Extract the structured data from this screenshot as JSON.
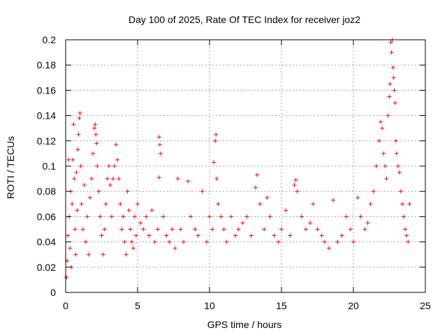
{
  "chart_data": {
    "type": "scatter",
    "title": "Day 100 of 2025, Rate Of TEC Index for receiver joz2",
    "xlabel": "GPS time / hours",
    "ylabel": "ROTI / TECUs",
    "xlim": [
      0,
      25
    ],
    "ylim": [
      0,
      0.2
    ],
    "xticks": [
      0,
      5,
      10,
      15,
      20,
      25
    ],
    "yticks": [
      0,
      0.02,
      0.04,
      0.06,
      0.08,
      0.1,
      0.12,
      0.14,
      0.16,
      0.18,
      0.2
    ],
    "xtick_labels": [
      "0",
      "5",
      "10",
      "15",
      "20",
      "25"
    ],
    "ytick_labels": [
      "0",
      "0.02",
      "0.04",
      "0.06",
      "0.08",
      "0.1",
      "0.12",
      "0.14",
      "0.16",
      "0.18",
      "0.2"
    ],
    "grid": true,
    "marker": "+",
    "color": "#ff0000",
    "series": [
      {
        "points": [
          [
            0.05,
            0.012
          ],
          [
            0.1,
            0.025
          ],
          [
            0.15,
            0.045
          ],
          [
            0.2,
            0.105
          ],
          [
            0.25,
            0.06
          ],
          [
            0.3,
            0.035
          ],
          [
            0.35,
            0.08
          ],
          [
            0.4,
            0.02
          ],
          [
            0.45,
            0.07
          ],
          [
            0.5,
            0.105
          ],
          [
            0.55,
            0.133
          ],
          [
            0.6,
            0.09
          ],
          [
            0.65,
            0.05
          ],
          [
            0.7,
            0.03
          ],
          [
            0.75,
            0.095
          ],
          [
            0.8,
            0.065
          ],
          [
            0.85,
            0.113
          ],
          [
            0.9,
            0.125
          ],
          [
            0.95,
            0.138
          ],
          [
            1.0,
            0.142
          ],
          [
            1.05,
            0.1
          ],
          [
            1.1,
            0.07
          ],
          [
            1.2,
            0.05
          ],
          [
            1.3,
            0.085
          ],
          [
            1.4,
            0.04
          ],
          [
            1.5,
            0.06
          ],
          [
            1.6,
            0.03
          ],
          [
            1.7,
            0.075
          ],
          [
            1.8,
            0.09
          ],
          [
            1.9,
            0.11
          ],
          [
            2.0,
            0.13
          ],
          [
            2.05,
            0.133
          ],
          [
            2.1,
            0.125
          ],
          [
            2.15,
            0.118
          ],
          [
            2.2,
            0.1
          ],
          [
            2.3,
            0.08
          ],
          [
            2.4,
            0.06
          ],
          [
            2.5,
            0.045
          ],
          [
            2.6,
            0.03
          ],
          [
            2.7,
            0.05
          ],
          [
            2.8,
            0.07
          ],
          [
            2.9,
            0.09
          ],
          [
            3.0,
            0.1
          ],
          [
            3.1,
            0.085
          ],
          [
            3.2,
            0.06
          ],
          [
            3.3,
            0.09
          ],
          [
            3.4,
            0.1
          ],
          [
            3.5,
            0.117
          ],
          [
            3.6,
            0.105
          ],
          [
            3.7,
            0.09
          ],
          [
            3.8,
            0.07
          ],
          [
            3.9,
            0.05
          ],
          [
            4.0,
            0.06
          ],
          [
            4.1,
            0.04
          ],
          [
            4.2,
            0.03
          ],
          [
            4.3,
            0.08
          ],
          [
            4.4,
            0.065
          ],
          [
            4.5,
            0.05
          ],
          [
            4.6,
            0.04
          ],
          [
            4.7,
            0.035
          ],
          [
            4.8,
            0.06
          ],
          [
            4.9,
            0.045
          ],
          [
            5.0,
            0.07
          ],
          [
            5.2,
            0.055
          ],
          [
            5.4,
            0.05
          ],
          [
            5.6,
            0.06
          ],
          [
            5.8,
            0.045
          ],
          [
            6.0,
            0.065
          ],
          [
            6.2,
            0.04
          ],
          [
            6.4,
            0.05
          ],
          [
            6.5,
            0.123
          ],
          [
            6.55,
            0.117
          ],
          [
            6.6,
            0.11
          ],
          [
            6.5,
            0.091
          ],
          [
            6.8,
            0.06
          ],
          [
            7.0,
            0.045
          ],
          [
            7.2,
            0.04
          ],
          [
            7.4,
            0.05
          ],
          [
            7.6,
            0.035
          ],
          [
            7.8,
            0.09
          ],
          [
            8.0,
            0.05
          ],
          [
            8.2,
            0.04
          ],
          [
            8.5,
            0.088
          ],
          [
            8.7,
            0.06
          ],
          [
            9.0,
            0.05
          ],
          [
            9.2,
            0.045
          ],
          [
            9.5,
            0.08
          ],
          [
            9.8,
            0.04
          ],
          [
            10.0,
            0.06
          ],
          [
            10.2,
            0.05
          ],
          [
            10.3,
            0.103
          ],
          [
            10.4,
            0.12
          ],
          [
            10.45,
            0.125
          ],
          [
            10.5,
            0.09
          ],
          [
            10.6,
            0.07
          ],
          [
            10.8,
            0.06
          ],
          [
            11.0,
            0.05
          ],
          [
            11.2,
            0.04
          ],
          [
            11.5,
            0.06
          ],
          [
            11.8,
            0.045
          ],
          [
            12.0,
            0.05
          ],
          [
            12.3,
            0.055
          ],
          [
            12.6,
            0.06
          ],
          [
            12.9,
            0.045
          ],
          [
            13.2,
            0.083
          ],
          [
            13.3,
            0.093
          ],
          [
            13.5,
            0.07
          ],
          [
            13.8,
            0.05
          ],
          [
            14.0,
            0.075
          ],
          [
            14.2,
            0.06
          ],
          [
            14.5,
            0.045
          ],
          [
            14.8,
            0.04
          ],
          [
            15.0,
            0.05
          ],
          [
            15.3,
            0.065
          ],
          [
            15.6,
            0.045
          ],
          [
            15.9,
            0.085
          ],
          [
            16.0,
            0.089
          ],
          [
            16.1,
            0.08
          ],
          [
            16.4,
            0.06
          ],
          [
            16.7,
            0.05
          ],
          [
            17.0,
            0.055
          ],
          [
            17.2,
            0.07
          ],
          [
            17.5,
            0.05
          ],
          [
            17.8,
            0.045
          ],
          [
            18.0,
            0.04
          ],
          [
            18.3,
            0.035
          ],
          [
            18.6,
            0.073
          ],
          [
            18.9,
            0.04
          ],
          [
            19.2,
            0.045
          ],
          [
            19.5,
            0.06
          ],
          [
            19.8,
            0.05
          ],
          [
            20.0,
            0.04
          ],
          [
            20.3,
            0.075
          ],
          [
            20.5,
            0.06
          ],
          [
            20.8,
            0.05
          ],
          [
            21.0,
            0.055
          ],
          [
            21.2,
            0.07
          ],
          [
            21.4,
            0.08
          ],
          [
            21.6,
            0.1
          ],
          [
            21.8,
            0.12
          ],
          [
            21.9,
            0.135
          ],
          [
            22.0,
            0.13
          ],
          [
            22.1,
            0.11
          ],
          [
            22.2,
            0.1
          ],
          [
            22.3,
            0.09
          ],
          [
            22.4,
            0.14
          ],
          [
            22.5,
            0.155
          ],
          [
            22.55,
            0.165
          ],
          [
            22.6,
            0.198
          ],
          [
            22.65,
            0.19
          ],
          [
            22.7,
            0.2
          ],
          [
            22.75,
            0.178
          ],
          [
            22.8,
            0.17
          ],
          [
            22.85,
            0.16
          ],
          [
            22.9,
            0.15
          ],
          [
            22.95,
            0.12
          ],
          [
            23.0,
            0.11
          ],
          [
            23.1,
            0.1
          ],
          [
            23.2,
            0.095
          ],
          [
            23.3,
            0.08
          ],
          [
            23.4,
            0.07
          ],
          [
            23.5,
            0.06
          ],
          [
            23.6,
            0.05
          ],
          [
            23.7,
            0.045
          ],
          [
            23.8,
            0.04
          ],
          [
            23.9,
            0.07
          ]
        ]
      }
    ]
  }
}
